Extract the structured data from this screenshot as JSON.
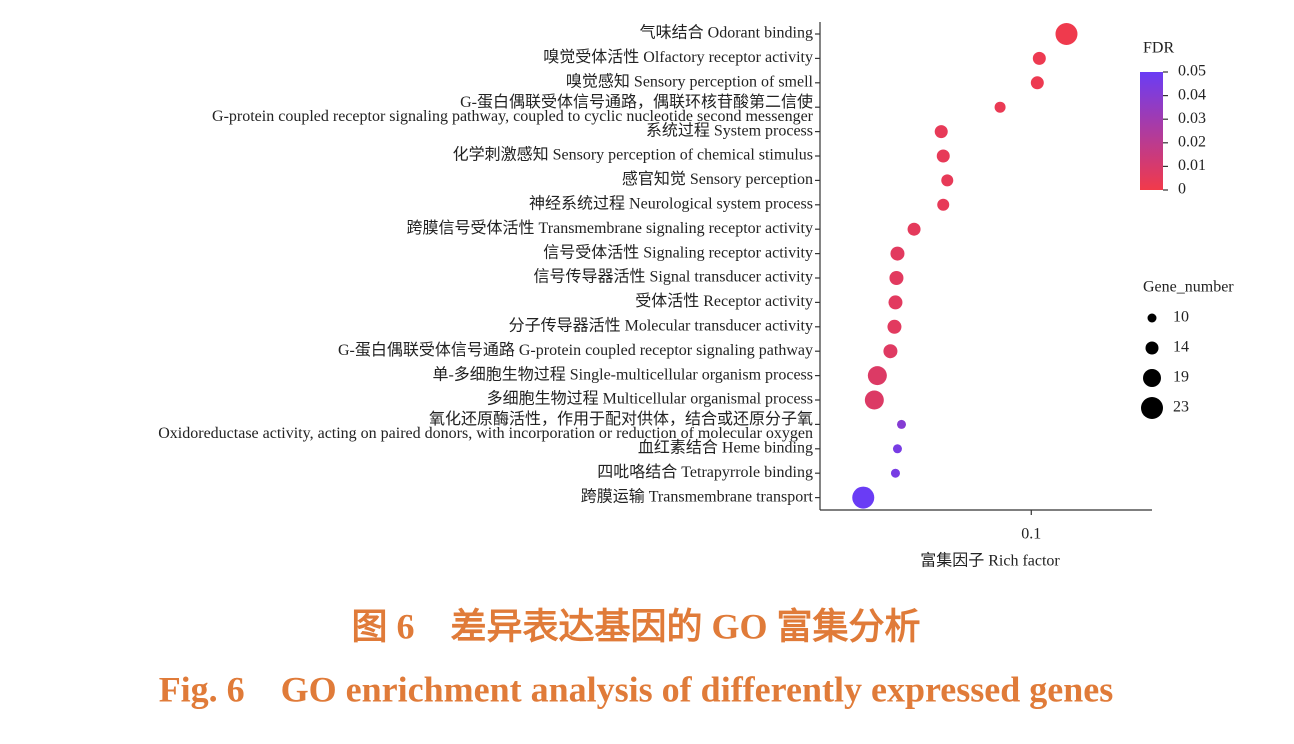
{
  "chart_data": {
    "type": "bubble",
    "categories": [
      "气味结合 Odorant binding",
      "嗅觉受体活性 Olfactory receptor activity",
      "嗅觉感知 Sensory perception of smell",
      [
        "G-蛋白偶联受体信号通路，偶联环核苷酸第二信使",
        "G-protein coupled receptor signaling pathway, coupled to cyclic nucleotide second messenger"
      ],
      "系统过程 System process",
      "化学刺激感知 Sensory perception of chemical stimulus",
      "感官知觉 Sensory perception",
      "神经系统过程 Neurological system process",
      "跨膜信号受体活性 Transmembrane signaling receptor activity",
      "信号受体活性 Signaling receptor activity",
      "信号传导器活性 Signal transducer activity",
      "受体活性 Receptor activity",
      "分子传导器活性 Molecular transducer activity",
      "G-蛋白偶联受体信号通路 G-protein coupled receptor signaling pathway",
      "单-多细胞生物过程 Single-multicellular organism process",
      "多细胞生物过程 Multicellular organismal process",
      [
        "氧化还原酶活性，作用于配对供体，结合或还原分子氧",
        "Oxidoreductase activity, acting on paired donors, with incorporation or reduction of molecular oxygen"
      ],
      "血红素结合 Heme binding",
      "四吡咯结合 Tetrapyrrole binding",
      "跨膜运输 Transmembrane transport"
    ],
    "values": [
      0.107,
      0.1016,
      0.1012,
      0.0938,
      0.0821,
      0.0825,
      0.0833,
      0.0825,
      0.0767,
      0.0734,
      0.0732,
      0.073,
      0.0728,
      0.072,
      0.0694,
      0.0688,
      0.0742,
      0.0734,
      0.073,
      0.0666
    ],
    "sizes": [
      23,
      14,
      14,
      12,
      14,
      14,
      13,
      13,
      14,
      15,
      15,
      15,
      15,
      15,
      20,
      20,
      10,
      10,
      10,
      23
    ],
    "fdr": [
      0.001,
      0.002,
      0.002,
      0.003,
      0.004,
      0.004,
      0.004,
      0.004,
      0.005,
      0.006,
      0.006,
      0.006,
      0.006,
      0.007,
      0.008,
      0.008,
      0.04,
      0.045,
      0.045,
      0.05
    ],
    "xlim": [
      0.058,
      0.124
    ],
    "xticks": [
      0.1
    ],
    "xlabel": "富集因子 Rich factor",
    "color_title": "FDR",
    "color_lim": [
      0,
      0.05
    ],
    "color_ticks": [
      0.05,
      0.04,
      0.03,
      0.02,
      0.01,
      0
    ],
    "colors": [
      "#f23a4a",
      "#6a3cf5"
    ],
    "size_title": "Gene_number",
    "size_legend": [
      10,
      14,
      19,
      23
    ]
  },
  "caption": {
    "chinese": "图 6　差异表达基因的 GO 富集分析",
    "english": "Fig. 6　GO enrichment analysis of differently expressed genes"
  }
}
